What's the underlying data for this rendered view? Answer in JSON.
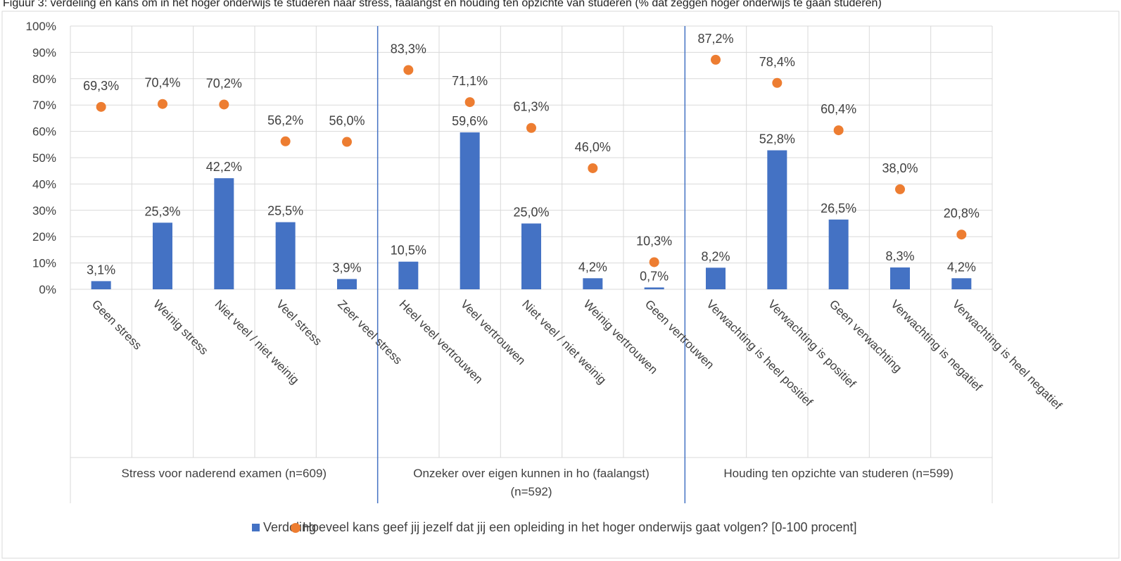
{
  "figure_caption": "Figuur 3: verdeling en kans om in het hoger onderwijs te studeren naar stress, faalangst en houding ten opzichte van studeren (% dat zeggen hoger onderwijs te gaan studeren)",
  "chart_data": {
    "type": "bar",
    "title": "",
    "xlabel": "",
    "ylabel": "",
    "ylim": [
      0,
      100
    ],
    "yticks": [
      "0%",
      "10%",
      "20%",
      "30%",
      "40%",
      "50%",
      "60%",
      "70%",
      "80%",
      "90%",
      "100%"
    ],
    "grid": true,
    "legend_position": "bottom",
    "colors": {
      "bar": "#4472C4",
      "marker": "#ED7D31",
      "grid": "#D9D9D9",
      "separator": "#4472C4"
    },
    "groups": [
      {
        "label_lines": [
          "Stress voor naderend examen (n=609)"
        ],
        "start": 0,
        "count": 5
      },
      {
        "label_lines": [
          "Onzeker over eigen kunnen in ho (faalangst)",
          "(n=592)"
        ],
        "start": 5,
        "count": 5
      },
      {
        "label_lines": [
          "Houding ten opzichte van studeren (n=599)"
        ],
        "start": 10,
        "count": 5
      }
    ],
    "categories": [
      "Geen stress",
      "Weinig stress",
      "Niet veel / niet weinig",
      "Veel stress",
      "Zeer veel stress",
      "Heel veel vertrouwen",
      "Veel vertrouwen",
      "Niet veel / niet weinig",
      "Weinig vertrouwen",
      "Geen vertrouwen",
      "Verwachting is heel positief",
      "Verwachting is positief",
      "Geen verwachting",
      "Verwachting is negatief",
      "Verwachting is heel negatief"
    ],
    "series": [
      {
        "name": "Verdeling",
        "kind": "bar",
        "values": [
          3.1,
          25.3,
          42.2,
          25.5,
          3.9,
          10.5,
          59.6,
          25.0,
          4.2,
          0.7,
          8.2,
          52.8,
          26.5,
          8.3,
          4.2
        ],
        "labels": [
          "3,1%",
          "25,3%",
          "42,2%",
          "25,5%",
          "3,9%",
          "10,5%",
          "59,6%",
          "25,0%",
          "4,2%",
          "0,7%",
          "8,2%",
          "52,8%",
          "26,5%",
          "8,3%",
          "4,2%"
        ]
      },
      {
        "name": "Hoeveel kans geef jij jezelf dat jij een opleiding in het hoger onderwijs gaat volgen? [0-100 procent]",
        "kind": "marker",
        "values": [
          69.3,
          70.4,
          70.2,
          56.2,
          56.0,
          83.3,
          71.1,
          61.3,
          46.0,
          10.3,
          87.2,
          78.4,
          60.4,
          38.0,
          20.8
        ],
        "labels": [
          "69,3%",
          "70,4%",
          "70,2%",
          "56,2%",
          "56,0%",
          "83,3%",
          "71,1%",
          "61,3%",
          "46,0%",
          "10,3%",
          "87,2%",
          "78,4%",
          "60,4%",
          "38,0%",
          "20,8%"
        ]
      }
    ]
  }
}
